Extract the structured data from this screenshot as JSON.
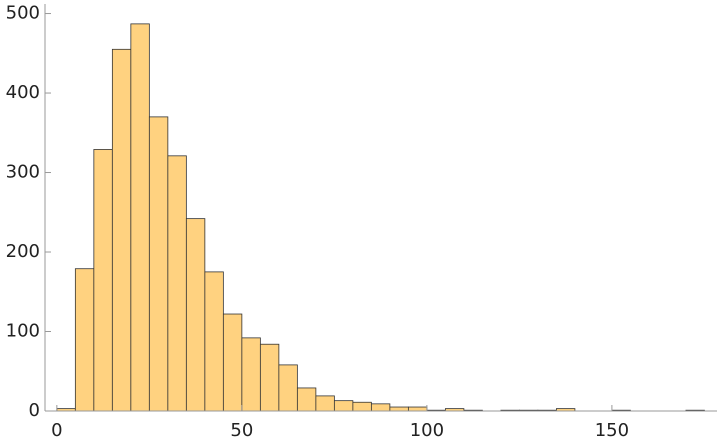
{
  "chart_data": {
    "type": "histogram",
    "bins": [
      0,
      5,
      10,
      15,
      20,
      25,
      30,
      35,
      40,
      45,
      50,
      55,
      60,
      65,
      70,
      75,
      80,
      85,
      90,
      95,
      100,
      105,
      110,
      115,
      120,
      125,
      130,
      135,
      140,
      145,
      150,
      155,
      160,
      165,
      170,
      175
    ],
    "counts": [
      3,
      179,
      329,
      455,
      487,
      370,
      321,
      242,
      175,
      122,
      92,
      84,
      58,
      29,
      19,
      13,
      11,
      9,
      5,
      5,
      1,
      3,
      1,
      0,
      1,
      1,
      1,
      3,
      0,
      0,
      1,
      0,
      0,
      0,
      1
    ],
    "color": "#ffd280",
    "xlim": [
      -3.2,
      178.4
    ],
    "ylim": [
      0,
      512
    ],
    "xticks": [
      0,
      50,
      100,
      150
    ],
    "yticks": [
      0,
      100,
      200,
      300,
      400,
      500
    ]
  }
}
